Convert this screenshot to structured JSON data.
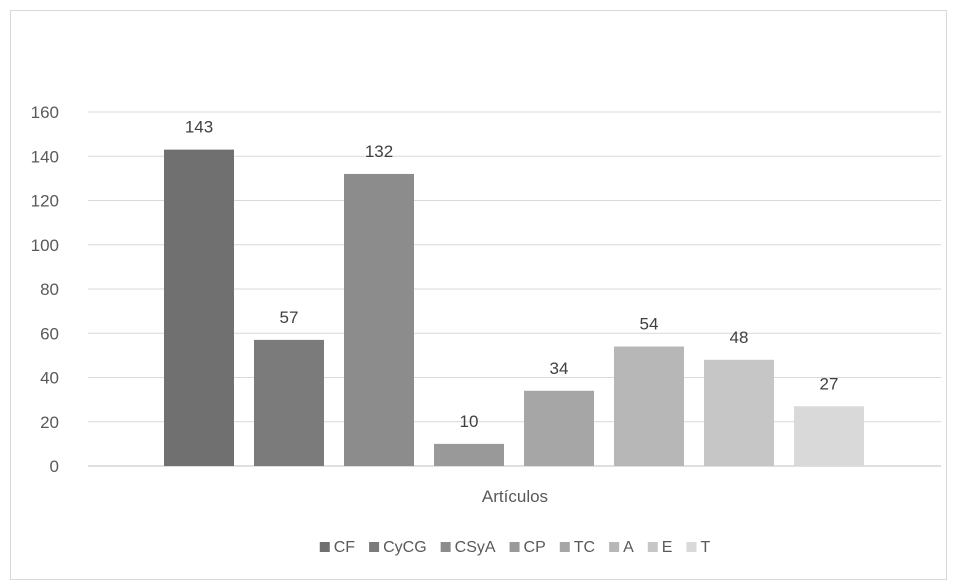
{
  "chart_data": {
    "type": "bar",
    "title": "",
    "xlabel": "Artículos",
    "ylabel": "",
    "ylim": [
      0,
      160
    ],
    "yticks": [
      0,
      20,
      40,
      60,
      80,
      100,
      120,
      140,
      160
    ],
    "grid": true,
    "legend_position": "bottom",
    "categories": [
      "Artículos"
    ],
    "series": [
      {
        "name": "CF",
        "values": [
          143
        ],
        "color": "#707070"
      },
      {
        "name": "CyCG",
        "values": [
          57
        ],
        "color": "#7b7b7b"
      },
      {
        "name": "CSyA",
        "values": [
          132
        ],
        "color": "#8c8c8c"
      },
      {
        "name": "CP",
        "values": [
          10
        ],
        "color": "#999999"
      },
      {
        "name": "TC",
        "values": [
          34
        ],
        "color": "#a6a6a6"
      },
      {
        "name": "A",
        "values": [
          54
        ],
        "color": "#b7b7b7"
      },
      {
        "name": "E",
        "values": [
          48
        ],
        "color": "#c6c6c6"
      },
      {
        "name": "T",
        "values": [
          27
        ],
        "color": "#d9d9d9"
      }
    ]
  }
}
